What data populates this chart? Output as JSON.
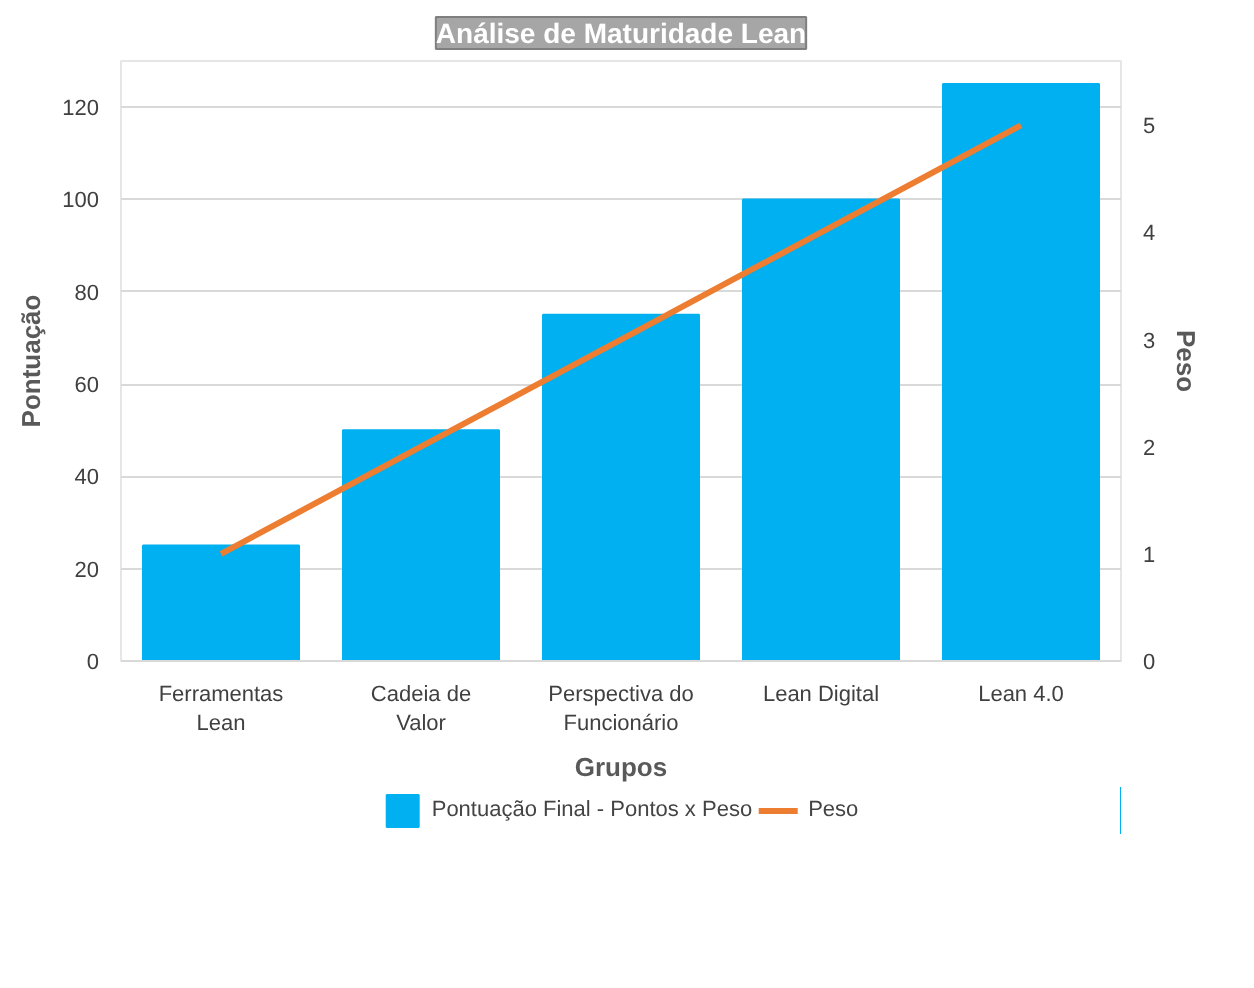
{
  "chart_data": {
    "type": "bar",
    "title": "Análise de Maturidade Lean",
    "xlabel": "Grupos",
    "ylabel": "Pontuação",
    "y2label": "Peso",
    "categories": [
      "Ferramentas Lean",
      "Cadeia de Valor",
      "Perspectiva do Funcionário",
      "Lean Digital",
      "Lean 4.0"
    ],
    "series": [
      {
        "name": "Pontuação Final - Pontos x Peso",
        "type": "bar",
        "color": "#00b0f0",
        "values": [
          25,
          50,
          75,
          100,
          125
        ]
      },
      {
        "name": "Peso",
        "type": "line",
        "axis": "y2",
        "color": "#ed7d31",
        "values": [
          1,
          2,
          3,
          4,
          5
        ]
      }
    ],
    "ylim": [
      0,
      130
    ],
    "yticks": [
      0,
      20,
      40,
      60,
      80,
      100,
      120
    ],
    "y2lim": [
      0,
      5.6
    ],
    "y2ticks": [
      0,
      1,
      2,
      3,
      4,
      5
    ],
    "grid": "y",
    "legend": "bottom"
  }
}
